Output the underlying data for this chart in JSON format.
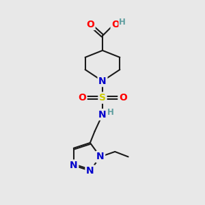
{
  "bg_color": "#e8e8e8",
  "atom_colors": {
    "C": "#000000",
    "N": "#0000cc",
    "O": "#ff0000",
    "S": "#cccc00",
    "H": "#5f9ea0"
  },
  "bond_color": "#1a1a1a",
  "figsize": [
    3.0,
    3.0
  ],
  "dpi": 100,
  "lw": 1.5,
  "fs": 10,
  "fs_small": 8.5
}
